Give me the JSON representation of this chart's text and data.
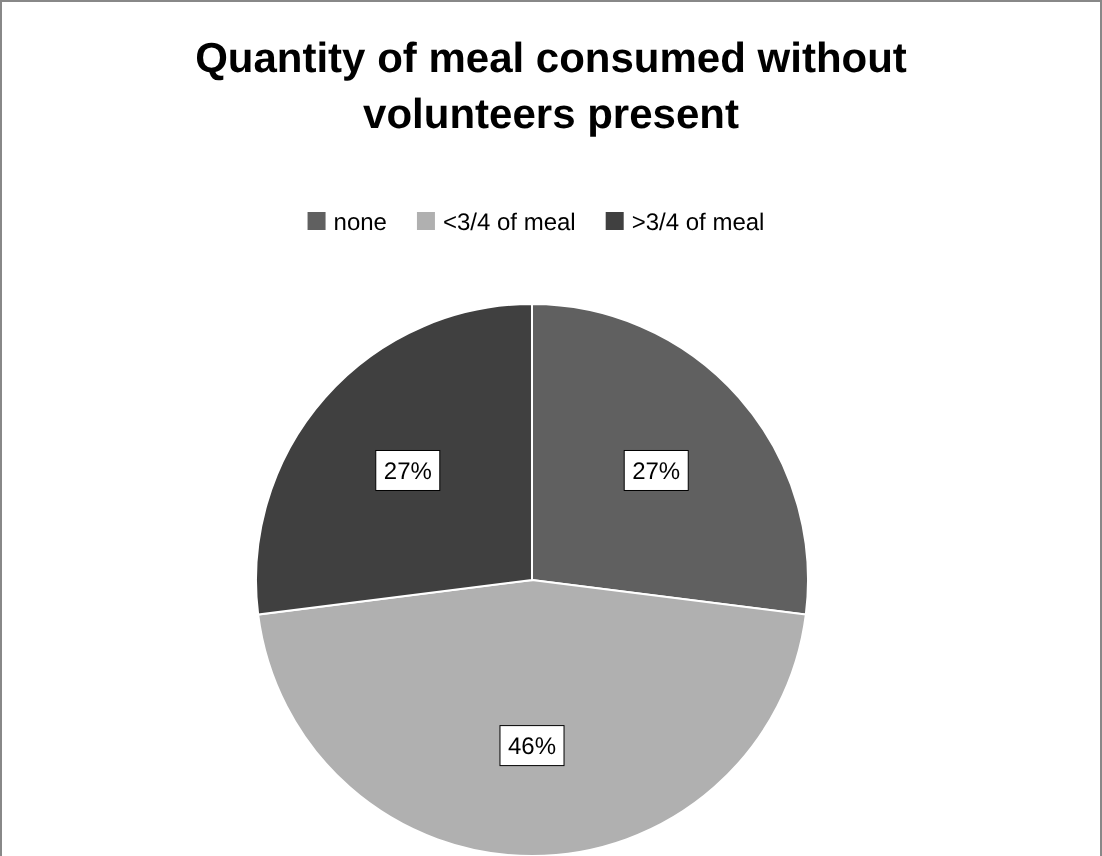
{
  "chart_data": {
    "type": "pie",
    "title": "Quantity of meal consumed without volunteers present",
    "categories": [
      "none",
      "<3/4 of meal",
      ">3/4 of meal"
    ],
    "values": [
      27,
      46,
      27
    ],
    "colors": [
      "#606060",
      "#b0b0b0",
      "#404040"
    ],
    "value_labels": [
      "27%",
      "46%",
      "27%"
    ],
    "legend": "top"
  }
}
